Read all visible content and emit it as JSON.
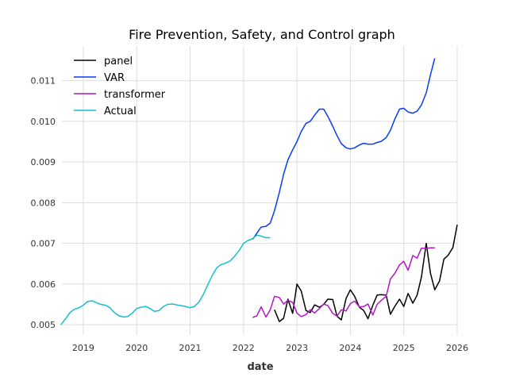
{
  "chart_data": {
    "type": "line",
    "title": "Fire Prevention, Safety, and Control graph",
    "xlabel": "date",
    "ylabel": "",
    "xlim": [
      2018.6,
      2026.0
    ],
    "ylim": [
      0.00475,
      0.01185
    ],
    "x_ticks": [
      2019,
      2020,
      2021,
      2022,
      2023,
      2024,
      2025,
      2026
    ],
    "x_tick_labels": [
      "2019",
      "2020",
      "2021",
      "2022",
      "2023",
      "2024",
      "2025",
      "2026"
    ],
    "y_ticks": [
      0.005,
      0.006,
      0.007,
      0.008,
      0.009,
      0.01,
      0.011
    ],
    "y_tick_labels": [
      "0.005",
      "0.006",
      "0.007",
      "0.008",
      "0.009",
      "0.010",
      "0.011"
    ],
    "grid": true,
    "legend_position": "top-left",
    "series": [
      {
        "name": "panel",
        "color": "#000000",
        "x": [
          2022.58,
          2022.67,
          2022.75,
          2022.83,
          2022.92,
          2023.0,
          2023.08,
          2023.17,
          2023.25,
          2023.33,
          2023.42,
          2023.5,
          2023.58,
          2023.67,
          2023.75,
          2023.83,
          2023.92,
          2024.0,
          2024.08,
          2024.17,
          2024.25,
          2024.33,
          2024.42,
          2024.5,
          2024.58,
          2024.67,
          2024.75,
          2024.83,
          2024.92,
          2025.0,
          2025.08,
          2025.17,
          2025.25,
          2025.33,
          2025.42,
          2025.5,
          2025.58,
          2025.67,
          2025.75,
          2025.83,
          2025.92,
          2026.0
        ],
        "y": [
          0.00537,
          0.00508,
          0.00516,
          0.00563,
          0.00528,
          0.006,
          0.00583,
          0.00535,
          0.0053,
          0.00549,
          0.00543,
          0.0055,
          0.00563,
          0.00562,
          0.00521,
          0.00512,
          0.00565,
          0.00586,
          0.0057,
          0.00543,
          0.00535,
          0.00515,
          0.00548,
          0.00573,
          0.00574,
          0.00573,
          0.00526,
          0.00545,
          0.00563,
          0.00545,
          0.00577,
          0.00553,
          0.00573,
          0.00617,
          0.007,
          0.00626,
          0.00586,
          0.00608,
          0.00661,
          0.00671,
          0.0069,
          0.00746
        ]
      },
      {
        "name": "VAR",
        "color": "#0a3cf0",
        "x": [
          2022.17,
          2022.25,
          2022.33,
          2022.42,
          2022.5,
          2022.58,
          2022.67,
          2022.75,
          2022.83,
          2022.92,
          2023.0,
          2023.08,
          2023.17,
          2023.25,
          2023.33,
          2023.42,
          2023.5,
          2023.58,
          2023.67,
          2023.75,
          2023.83,
          2023.92,
          2024.0,
          2024.08,
          2024.17,
          2024.25,
          2024.33,
          2024.42,
          2024.5,
          2024.58,
          2024.67,
          2024.75,
          2024.83,
          2024.92,
          2025.0,
          2025.08,
          2025.17,
          2025.25,
          2025.33,
          2025.42,
          2025.5,
          2025.58
        ],
        "y": [
          0.0071,
          0.00725,
          0.0074,
          0.00742,
          0.0075,
          0.0078,
          0.00825,
          0.0087,
          0.00905,
          0.0093,
          0.0095,
          0.00975,
          0.00995,
          0.01,
          0.01015,
          0.0103,
          0.0103,
          0.01012,
          0.00988,
          0.00965,
          0.00945,
          0.00935,
          0.00932,
          0.00935,
          0.00942,
          0.00946,
          0.00944,
          0.00944,
          0.00948,
          0.00951,
          0.0096,
          0.00978,
          0.01005,
          0.0103,
          0.01032,
          0.01023,
          0.0102,
          0.01025,
          0.0104,
          0.0107,
          0.01115,
          0.01155
        ]
      },
      {
        "name": "transformer",
        "color": "#b217c4",
        "x": [
          2022.17,
          2022.25,
          2022.33,
          2022.42,
          2022.5,
          2022.58,
          2022.67,
          2022.75,
          2022.83,
          2022.92,
          2023.0,
          2023.08,
          2023.17,
          2023.25,
          2023.33,
          2023.42,
          2023.5,
          2023.58,
          2023.67,
          2023.75,
          2023.83,
          2023.92,
          2024.0,
          2024.08,
          2024.17,
          2024.25,
          2024.33,
          2024.42,
          2024.5,
          2024.58,
          2024.67,
          2024.75,
          2024.83,
          2024.92,
          2025.0,
          2025.08,
          2025.17,
          2025.25,
          2025.33,
          2025.42,
          2025.5,
          2025.58
        ],
        "y": [
          0.00518,
          0.00522,
          0.00544,
          0.00519,
          0.00537,
          0.0057,
          0.00567,
          0.00551,
          0.0056,
          0.00555,
          0.00529,
          0.0052,
          0.00525,
          0.00537,
          0.00529,
          0.0054,
          0.00551,
          0.00547,
          0.00528,
          0.00521,
          0.00537,
          0.00534,
          0.00552,
          0.00558,
          0.00544,
          0.00545,
          0.00551,
          0.00524,
          0.0055,
          0.0056,
          0.0057,
          0.00613,
          0.00626,
          0.00647,
          0.00656,
          0.00634,
          0.0067,
          0.00664,
          0.00688,
          0.00688,
          0.00689,
          0.00689
        ]
      },
      {
        "name": "Actual",
        "color": "#17becf",
        "x": [
          2018.58,
          2018.67,
          2018.75,
          2018.83,
          2018.92,
          2019.0,
          2019.08,
          2019.17,
          2019.25,
          2019.33,
          2019.42,
          2019.5,
          2019.58,
          2019.67,
          2019.75,
          2019.83,
          2019.92,
          2020.0,
          2020.08,
          2020.17,
          2020.25,
          2020.33,
          2020.42,
          2020.5,
          2020.58,
          2020.67,
          2020.75,
          2020.83,
          2020.92,
          2021.0,
          2021.08,
          2021.17,
          2021.25,
          2021.33,
          2021.42,
          2021.5,
          2021.58,
          2021.67,
          2021.75,
          2021.83,
          2021.92,
          2022.0,
          2022.08,
          2022.17,
          2022.25,
          2022.33,
          2022.42,
          2022.5
        ],
        "y": [
          0.005,
          0.00515,
          0.0053,
          0.00538,
          0.00542,
          0.00548,
          0.00557,
          0.00559,
          0.00554,
          0.0055,
          0.00548,
          0.00542,
          0.0053,
          0.00522,
          0.00519,
          0.0052,
          0.00529,
          0.0054,
          0.00543,
          0.00545,
          0.0054,
          0.00533,
          0.00535,
          0.00545,
          0.0055,
          0.00551,
          0.00549,
          0.00547,
          0.00545,
          0.00542,
          0.00545,
          0.00557,
          0.00575,
          0.00598,
          0.00623,
          0.0064,
          0.00648,
          0.00652,
          0.00657,
          0.00668,
          0.00683,
          0.007,
          0.00707,
          0.00712,
          0.0072,
          0.00718,
          0.00714,
          0.00714
        ]
      }
    ]
  }
}
